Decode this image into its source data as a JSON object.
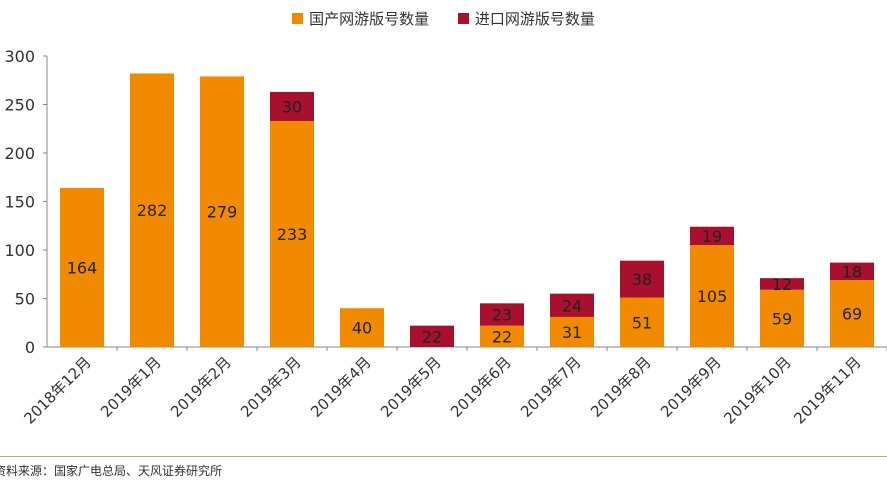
{
  "chart_data": {
    "type": "bar",
    "stacked": true,
    "categories": [
      "2018年12月",
      "2019年1月",
      "2019年2月",
      "2019年3月",
      "2019年4月",
      "2019年5月",
      "2019年6月",
      "2019年7月",
      "2019年8月",
      "2019年9月",
      "2019年10月",
      "2019年11月"
    ],
    "series": [
      {
        "name": "国产网游版号数量",
        "color": "#F28A00",
        "values": [
          164,
          282,
          279,
          233,
          40,
          0,
          22,
          31,
          51,
          105,
          59,
          69
        ]
      },
      {
        "name": "进口网游版号数量",
        "color": "#A8102E",
        "values": [
          0,
          0,
          0,
          30,
          0,
          22,
          23,
          24,
          38,
          19,
          12,
          18
        ]
      }
    ],
    "yticks": [
      0,
      50,
      100,
      150,
      200,
      250,
      300
    ],
    "ylim": [
      0,
      300
    ],
    "legend_position": "top-center",
    "grid": false
  },
  "source_note": "资料来源：国家广电总局、天风证券研究所"
}
